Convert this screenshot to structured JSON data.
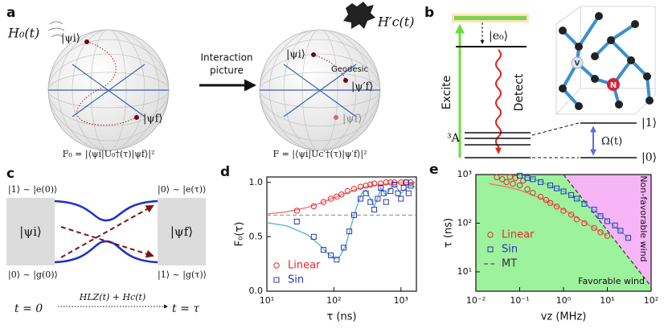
{
  "panel_a": {
    "label": "a",
    "h0": "H₀(t)",
    "psi_i_left": "|ψi⟩",
    "psi_f_left": "|ψf⟩",
    "arrow_text": [
      "Interaction",
      "picture"
    ],
    "hc": "H′c(t)",
    "psi_i_right": "|ψi⟩",
    "geodesic": "Geodesic",
    "psi_f_prime": "|ψ′f⟩",
    "psi_f_right": "|ψf⟩",
    "f0": "F₀ = |⟨ψi|U₀†(τ)|ψf⟩|²",
    "f": "F = |⟨ψi|Uc′†(τ)|ψ′f⟩|²"
  },
  "panel_b": {
    "label": "b",
    "e0": "|e₀⟩",
    "excite": "Excite",
    "detect": "Detect",
    "ground": "³A",
    "one": "|1⟩",
    "zero": "|0⟩",
    "omega": "Ω(t)",
    "vacancy": "V",
    "nitrogen": "N"
  },
  "panel_c": {
    "label": "c",
    "top_left": "|1⟩ ~ |e(0)⟩",
    "top_right": "|0⟩ ~ |e(τ)⟩",
    "psi_i": "|ψi⟩",
    "psi_f": "|ψf⟩",
    "bottom_left": "|0⟩ ~ |g(0)⟩",
    "bottom_right": "|1⟩ ~ |g(τ)⟩",
    "t0": "t = 0",
    "hamiltonian": "HLZ(t) + Hc(t)",
    "t_end": "t = τ"
  },
  "chart_data": [
    {
      "type": "scatter",
      "label": "d",
      "xlabel": "τ (ns)",
      "ylabel": "F₀(τ)",
      "xscale": "log",
      "yscale": "linear",
      "xlim": [
        10,
        1700
      ],
      "ylim": [
        0,
        1.05
      ],
      "xticks": [
        {
          "value": 10,
          "label": "10¹"
        },
        {
          "value": 100,
          "label": "10²"
        },
        {
          "value": 1000,
          "label": "10³"
        }
      ],
      "yticks": [
        {
          "value": 0,
          "label": "0.0"
        },
        0.5,
        {
          "value": 1,
          "label": "1.0"
        }
      ],
      "hline": 0.7,
      "hline_color": "#888888",
      "legend": "lower left",
      "series": [
        {
          "name": "Linear",
          "color": "#e8282b",
          "marker": "circle",
          "x": [
            28,
            50,
            70,
            90,
            110,
            130,
            160,
            200,
            250,
            300,
            350,
            400,
            500,
            600,
            700,
            800,
            1000,
            1200,
            1400
          ],
          "values": [
            0.74,
            0.78,
            0.82,
            0.85,
            0.87,
            0.89,
            0.92,
            0.94,
            0.96,
            0.97,
            0.98,
            0.99,
            0.99,
            1.0,
            1.0,
            1.0,
            1.0,
            1.0,
            1.0
          ]
        },
        {
          "name": "Sin",
          "color": "#2b36b0",
          "marker": "square",
          "x": [
            28,
            50,
            70,
            90,
            110,
            140,
            170,
            200,
            250,
            300,
            350,
            400,
            450,
            500,
            550,
            600,
            700,
            800,
            900,
            1000,
            1100,
            1200,
            1300,
            1400
          ],
          "values": [
            0.64,
            0.5,
            0.38,
            0.33,
            0.29,
            0.4,
            0.55,
            0.7,
            0.85,
            0.9,
            0.82,
            0.75,
            0.85,
            0.95,
            0.9,
            0.82,
            0.92,
            0.98,
            0.9,
            0.85,
            0.95,
            1.0,
            0.9,
            0.97
          ]
        },
        {
          "color": "#f07070",
          "line": "solid",
          "x": [
            10,
            20,
            40,
            70,
            100,
            150,
            200,
            300,
            500,
            800,
            1700
          ],
          "values": [
            0.71,
            0.73,
            0.77,
            0.82,
            0.86,
            0.9,
            0.93,
            0.96,
            0.98,
            0.995,
            1.0
          ]
        },
        {
          "color": "#4bb5d6",
          "line": "solid",
          "x": [
            10,
            20,
            40,
            60,
            80,
            100,
            120,
            150,
            180,
            220,
            260,
            300,
            350,
            400,
            450,
            500,
            600,
            700,
            800,
            1000,
            1300,
            1700
          ],
          "values": [
            0.63,
            0.6,
            0.52,
            0.43,
            0.35,
            0.3,
            0.31,
            0.42,
            0.6,
            0.78,
            0.9,
            0.93,
            0.85,
            0.78,
            0.86,
            0.95,
            0.88,
            0.95,
            0.98,
            0.9,
            0.97,
            0.96
          ]
        }
      ]
    },
    {
      "type": "scatter",
      "label": "e",
      "xlabel": "vz (MHz)",
      "ylabel": "τ (ns)",
      "xscale": "log",
      "yscale": "log",
      "xlim": [
        0.01,
        100
      ],
      "ylim": [
        4,
        1000
      ],
      "xticks": [
        {
          "value": 0.01,
          "label": "10⁻²"
        },
        {
          "value": 0.1,
          "label": "10⁻¹"
        },
        {
          "value": 1,
          "label": "10⁰"
        },
        {
          "value": 10,
          "label": "10¹"
        },
        {
          "value": 100,
          "label": "10²"
        }
      ],
      "yticks": [
        {
          "value": 10,
          "label": "10¹"
        },
        {
          "value": 100,
          "label": "10²"
        },
        {
          "value": 1000,
          "label": "10³"
        }
      ],
      "regions": {
        "below": "#9df29d",
        "above": "#f6b5f6"
      },
      "annotations": [
        "Non-favorable wind",
        "Favorable wind"
      ],
      "legend": "center left",
      "series": [
        {
          "name": "Linear",
          "color": "#e8282b",
          "marker": "circle",
          "x": [
            0.03,
            0.04,
            0.05,
            0.06,
            0.07,
            0.08,
            0.1,
            0.12,
            0.15,
            0.2,
            0.3,
            0.4,
            0.5,
            0.7,
            1,
            1.5,
            2,
            3,
            5,
            7,
            10
          ],
          "values": [
            880,
            800,
            700,
            900,
            650,
            850,
            600,
            750,
            500,
            420,
            350,
            300,
            260,
            220,
            180,
            150,
            120,
            100,
            80,
            65,
            55
          ]
        },
        {
          "name": "Sin",
          "color": "#2b36b0",
          "marker": "square",
          "x": [
            0.1,
            0.15,
            0.2,
            0.3,
            0.5,
            0.7,
            1,
            1.5,
            2,
            3,
            5,
            7,
            10,
            15,
            20,
            30
          ],
          "values": [
            950,
            850,
            800,
            700,
            600,
            520,
            450,
            380,
            320,
            250,
            190,
            140,
            110,
            90,
            70,
            50
          ]
        },
        {
          "name": "MT",
          "color": "#333333",
          "line": "dashed",
          "x": [
            1,
            100
          ],
          "values": [
            1000,
            5
          ]
        },
        {
          "color": "#f07070",
          "line": "solid",
          "x": [
            0.02,
            0.05,
            0.1,
            0.3,
            1,
            3,
            10
          ],
          "values": [
            650,
            560,
            480,
            330,
            190,
            105,
            55
          ]
        },
        {
          "color": "#4bb5d6",
          "line": "solid",
          "x": [
            0.1,
            0.3,
            1,
            3,
            10,
            30
          ],
          "values": [
            1000,
            720,
            450,
            260,
            115,
            50
          ]
        }
      ]
    }
  ]
}
